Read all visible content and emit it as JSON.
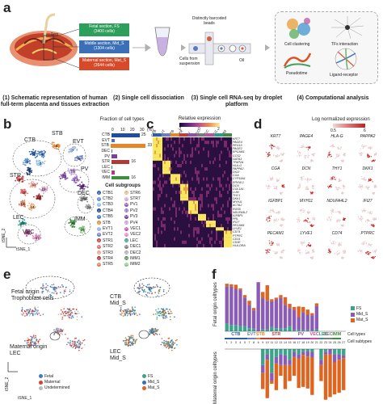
{
  "panel_a": {
    "label": "a",
    "sections": [
      {
        "name": "Fetal section, FS",
        "cells": "(3400 cells)",
        "color": "#2e9e5b"
      },
      {
        "name": "Middle section, Mid_S",
        "cells": "(1304 cells)",
        "color": "#3b6fb6"
      },
      {
        "name": "Maternal section, Mat_S",
        "cells": "(2644 cells)",
        "color": "#d64a2a"
      }
    ],
    "scale_label": "1cm",
    "beads_label": "Distinctly barcoded beads",
    "cells_label": "Cells from suspension",
    "oil_label": "Oil",
    "analysis": {
      "cell_clustering": "Cell clustering",
      "tfs_interaction": "TFs interaction",
      "pseudotime": "Pseudotime",
      "ligand_receptor": "Ligand-receptor"
    },
    "steps": [
      "(1) Schematic representation of human full-term placenta and tissues extraction",
      "(2) Single cell dissociation",
      "(3) Single cell RNA-seq by droplet platform",
      "(4) Computational analysis"
    ]
  },
  "panel_b": {
    "label": "b",
    "cluster_labels": [
      "CTB",
      "STB",
      "EVT",
      "STR",
      "PV",
      "DEC",
      "LEC",
      "VEC",
      "IMM"
    ],
    "cluster_numbers": [
      "1",
      "2",
      "3",
      "4",
      "5",
      "6",
      "7",
      "8",
      "9",
      "10",
      "11",
      "12",
      "13",
      "14",
      "15",
      "16",
      "17",
      "18",
      "19",
      "20",
      "21",
      "22",
      "23",
      "24",
      "25",
      "26",
      "27"
    ],
    "axis_x": "tSNE_1",
    "axis_y": "tSNE_2",
    "fraction_title": "Fraction of cell types",
    "fraction_axis": [
      "0",
      "10",
      "20",
      "30",
      "(%)"
    ],
    "fractions": [
      {
        "type": "CTB",
        "value": 25,
        "color": "#1f4e9e"
      },
      {
        "type": "EVT",
        "value": 3,
        "color": "#5b6bb0"
      },
      {
        "type": "STB",
        "value": 33,
        "color": "#e8842c"
      },
      {
        "type": "DEC",
        "value": 1,
        "color": "#6b6b6b"
      },
      {
        "type": "PV",
        "value": 5,
        "color": "#7b3fa0"
      },
      {
        "type": "STR",
        "value": 16,
        "color": "#b03a3a"
      },
      {
        "type": "LEC",
        "value": 1,
        "color": "#2a9a8a"
      },
      {
        "type": "VEC",
        "value": 3,
        "color": "#a63d8f"
      },
      {
        "type": "IMM",
        "value": 16,
        "color": "#3d8f3d"
      }
    ],
    "fraction_numbers": [
      "25",
      "33",
      "16",
      "16"
    ],
    "subgroups_title": "Cell subgroups",
    "subgroups_left": [
      {
        "n": "1",
        "name": "CTB1",
        "color": "#2d5fa8"
      },
      {
        "n": "2",
        "name": "CTB2",
        "color": "#5a8fd0"
      },
      {
        "n": "3",
        "name": "CTB3",
        "color": "#8ec0e8"
      },
      {
        "n": "4",
        "name": "CTB4",
        "color": "#1e3f7a"
      },
      {
        "n": "5",
        "name": "CTB5",
        "color": "#3c78c4"
      },
      {
        "n": "6",
        "name": "STB",
        "color": "#e8842c"
      },
      {
        "n": "7",
        "name": "EVT1",
        "color": "#9ab4dc"
      },
      {
        "n": "8",
        "name": "EVT2",
        "color": "#6b7fc0"
      },
      {
        "n": "9",
        "name": "STR1",
        "color": "#c23b3b"
      },
      {
        "n": "10",
        "name": "STR2",
        "color": "#e06060"
      },
      {
        "n": "11",
        "name": "STR3",
        "color": "#f09a8a"
      },
      {
        "n": "12",
        "name": "STR4",
        "color": "#a02828"
      },
      {
        "n": "13",
        "name": "STR5",
        "color": "#d47a5a"
      }
    ],
    "subgroups_right": [
      {
        "n": "14",
        "name": "STR6",
        "color": "#e8b07a"
      },
      {
        "n": "15",
        "name": "STR7",
        "color": "#d4a0c8"
      },
      {
        "n": "16",
        "name": "PV1",
        "color": "#8b4fb0"
      },
      {
        "n": "17",
        "name": "PV2",
        "color": "#a070c8"
      },
      {
        "n": "18",
        "name": "PV3",
        "color": "#6a3090"
      },
      {
        "n": "19",
        "name": "PV4",
        "color": "#c098dc"
      },
      {
        "n": "20",
        "name": "VEC1",
        "color": "#c0509a"
      },
      {
        "n": "21",
        "name": "VEC2",
        "color": "#e088c0"
      },
      {
        "n": "22",
        "name": "LEC",
        "color": "#2a9a8a"
      },
      {
        "n": "23",
        "name": "DEC1",
        "color": "#7a7a7a"
      },
      {
        "n": "24",
        "name": "DEC2",
        "color": "#a8a8a8"
      },
      {
        "n": "25",
        "name": "IMM1",
        "color": "#3d8f3d"
      },
      {
        "n": "26",
        "name": "IMM2",
        "color": "#7cc47c"
      }
    ]
  },
  "panel_c": {
    "label": "c",
    "legend_title": "Relative expression",
    "legend_ticks": [
      "-2",
      "0",
      "2"
    ],
    "top_labels": [
      "CTB",
      "EVT",
      "STB",
      "STR",
      "PV",
      "DEC",
      "VEC",
      "LEC",
      "IMM"
    ],
    "genes": [
      "KRT7",
      "PAGE4",
      "PEG10",
      "PAGE2",
      "EPCAM1",
      "CCS2",
      "GATA3",
      "TFAP2A",
      "HLA-G",
      "PAPPA2",
      "DIO2",
      "CGA",
      "CYP19A1",
      "ERVW-1",
      "DCN",
      "COL1A1",
      "LUM",
      "THY1",
      "DKK1",
      "MYH11",
      "ACTA2",
      "RGS5",
      "NDUFA4L2",
      "IGFBP1",
      "PRL",
      "IFI27",
      "PECAM1",
      "LYVE1",
      "CD74",
      "PTPRC",
      "CD14",
      "CD3E",
      "HLA-DRA"
    ]
  },
  "panel_d": {
    "label": "d",
    "legend_title": "Log normalized expression",
    "legend_ticks": [
      "0.5",
      "6"
    ],
    "genes": [
      "KRT7",
      "PAGE4",
      "HLA-G",
      "PAPPA2",
      "CGA",
      "DCN",
      "THY1",
      "DKK1",
      "IGFBP1",
      "MYH11",
      "NDUFA4L2",
      "IFI27",
      "PECAM1",
      "LYVE1",
      "CD74",
      "PTPRC"
    ]
  },
  "panel_e": {
    "label": "e",
    "fetal_origin": "Fetal origin",
    "trophoblast": "Trophoblast cells",
    "maternal_origin": "Maternal origin",
    "lec": "LEC",
    "ctb": "CTB",
    "mid_s": "Mid_S",
    "lec2": "LEC",
    "mid_s2": "Mid_S",
    "axis_x": "tSNE_1",
    "axis_y": "tSNE_2",
    "legend_origin": [
      {
        "name": "Fetal",
        "color": "#3a7fc2"
      },
      {
        "name": "Maternal",
        "color": "#d8432e"
      },
      {
        "name": "Undetermined",
        "color": "#bdbdbd"
      }
    ],
    "legend_section": [
      {
        "name": "FS",
        "color": "#3aa58a"
      },
      {
        "name": "Mid_S",
        "color": "#3b6fb6"
      },
      {
        "name": "Mat_S",
        "color": "#e0641e"
      }
    ]
  },
  "panel_f": {
    "label": "f",
    "ylabel_top": "Fetal origin celltypes",
    "ylabel_bottom": "Maternal origin celltypes",
    "legend": [
      {
        "name": "FS",
        "color": "#3aa58a"
      },
      {
        "name": "Mid_S",
        "color": "#8a5cb8"
      },
      {
        "name": "Mat_S",
        "color": "#e0641e"
      }
    ],
    "cell_types_label": "Cell types",
    "cell_subtypes_label": "Cell subtypes",
    "type_labels": [
      "CTB",
      "EVT",
      "STB",
      "STR",
      "PV",
      "VEC",
      "LEC",
      "DEC",
      "IMM"
    ],
    "subtype_numbers": [
      "1",
      "2",
      "3",
      "4",
      "5",
      "7",
      "8",
      "6",
      "9",
      "10",
      "11",
      "12",
      "13",
      "14",
      "15",
      "16",
      "17",
      "18",
      "19",
      "20",
      "21",
      "22",
      "23",
      "24",
      "25",
      "26",
      "27"
    ]
  },
  "chart_data": [
    {
      "type": "bar",
      "title": "",
      "ylabel": "Fetal origin celltypes",
      "categories": [
        "1",
        "2",
        "3",
        "4",
        "5",
        "7",
        "8",
        "6",
        "9",
        "10",
        "11",
        "12",
        "13",
        "14",
        "15",
        "16",
        "17",
        "18",
        "19",
        "20",
        "21",
        "22",
        "23",
        "24",
        "25",
        "26",
        "27"
      ],
      "series": [
        {
          "name": "FS",
          "values": [
            0.15,
            0.12,
            0.12,
            0.1,
            0.1,
            0.06,
            0.05,
            0.0,
            0.04,
            0.04,
            0.08,
            0.06,
            0.05,
            0.06,
            0.1,
            0.02,
            0.03,
            0.02,
            0.02,
            0.01,
            0.04,
            0.0,
            0.0,
            0.0,
            0.0,
            0.0,
            0.0
          ]
        },
        {
          "name": "Mid_S",
          "values": [
            0.72,
            0.75,
            0.7,
            0.7,
            0.55,
            0.45,
            0.35,
            0.95,
            0.6,
            0.55,
            0.5,
            0.55,
            0.6,
            0.45,
            0.35,
            0.4,
            0.25,
            0.35,
            0.3,
            0.3,
            0.45,
            0.0,
            0.0,
            0.0,
            0.0,
            0.0,
            0.0
          ]
        },
        {
          "name": "Mat_S",
          "values": [
            0.05,
            0.04,
            0.08,
            0.03,
            0.05,
            0.08,
            0.05,
            0.0,
            0.12,
            0.3,
            0.04,
            0.04,
            0.05,
            0.15,
            0.08,
            0.05,
            0.2,
            0.1,
            0.1,
            0.04,
            0.05,
            0.0,
            0.0,
            0.0,
            0.0,
            0.0,
            0.0
          ]
        }
      ]
    },
    {
      "type": "bar",
      "title": "",
      "ylabel": "Maternal origin celltypes",
      "categories": [
        "1",
        "2",
        "3",
        "4",
        "5",
        "7",
        "8",
        "6",
        "9",
        "10",
        "11",
        "12",
        "13",
        "14",
        "15",
        "16",
        "17",
        "18",
        "19",
        "20",
        "21",
        "22",
        "23",
        "24",
        "25",
        "26",
        "27"
      ],
      "series": [
        {
          "name": "FS",
          "values": [
            0.0,
            0.0,
            0.0,
            0.0,
            0.0,
            0.0,
            0.0,
            0.0,
            0.3,
            0.1,
            0.45,
            0.15,
            0.1,
            0.12,
            0.2,
            0.05,
            0.1,
            0.05,
            0.04,
            0.06,
            0.0,
            0.2,
            0.05,
            0.0,
            0.1,
            0.1,
            0.12
          ]
        },
        {
          "name": "Mid_S",
          "values": [
            0.0,
            0.0,
            0.0,
            0.0,
            0.0,
            0.0,
            0.0,
            0.0,
            0.15,
            0.1,
            0.15,
            0.12,
            0.2,
            0.18,
            0.1,
            0.1,
            0.08,
            0.06,
            0.1,
            0.1,
            0.0,
            0.1,
            0.05,
            0.1,
            0.15,
            0.1,
            0.05
          ]
        },
        {
          "name": "Mat_S",
          "values": [
            0.0,
            0.0,
            0.0,
            0.0,
            0.0,
            0.0,
            0.0,
            0.0,
            0.3,
            0.72,
            0.05,
            0.5,
            0.2,
            0.45,
            0.3,
            0.35,
            0.55,
            0.6,
            0.6,
            0.7,
            0.0,
            0.3,
            0.85,
            0.8,
            0.6,
            0.62,
            0.6
          ]
        }
      ]
    }
  ]
}
